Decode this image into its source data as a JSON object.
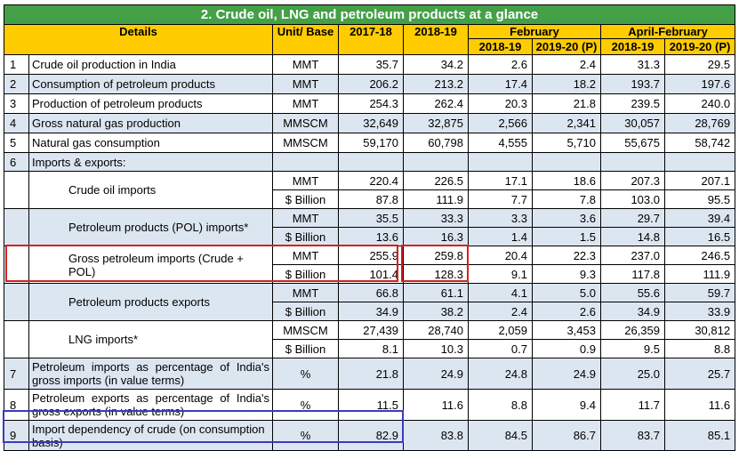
{
  "title": "2. Crude oil, LNG and petroleum products at a glance",
  "headers": {
    "details": "Details",
    "unit": "Unit/ Base",
    "y1": "2017-18",
    "y2": "2018-19",
    "feb": "February",
    "aprfeb": "April-February",
    "feb_a": "2018-19",
    "feb_b": "2019-20 (P)",
    "af_a": "2018-19",
    "af_b": "2019-20 (P)"
  },
  "rows": {
    "r1": {
      "sn": "1",
      "label": "Crude oil production in India",
      "unit": "MMT",
      "v": [
        "35.7",
        "34.2",
        "2.6",
        "2.4",
        "31.3",
        "29.5"
      ]
    },
    "r2": {
      "sn": "2",
      "label": "Consumption of petroleum products",
      "unit": "MMT",
      "v": [
        "206.2",
        "213.2",
        "17.4",
        "18.2",
        "193.7",
        "197.6"
      ]
    },
    "r3": {
      "sn": "3",
      "label": "Production of petroleum products",
      "unit": "MMT",
      "v": [
        "254.3",
        "262.4",
        "20.3",
        "21.8",
        "239.5",
        "240.0"
      ]
    },
    "r4": {
      "sn": "4",
      "label": "Gross natural gas production",
      "unit": "MMSCM",
      "v": [
        "32,649",
        "32,875",
        "2,566",
        "2,341",
        "30,057",
        "28,769"
      ]
    },
    "r5": {
      "sn": "5",
      "label": "Natural gas consumption",
      "unit": "MMSCM",
      "v": [
        "59,170",
        "60,798",
        "4,555",
        "5,710",
        "55,675",
        "58,742"
      ]
    },
    "r6": {
      "sn": "6",
      "label": "Imports & exports:"
    },
    "crude": {
      "label": "Crude oil imports",
      "a": {
        "unit": "MMT",
        "v": [
          "220.4",
          "226.5",
          "17.1",
          "18.6",
          "207.3",
          "207.1"
        ]
      },
      "b": {
        "unit": "$ Billion",
        "v": [
          "87.8",
          "111.9",
          "7.7",
          "7.8",
          "103.0",
          "95.5"
        ]
      }
    },
    "pol": {
      "label": "Petroleum products (POL) imports*",
      "a": {
        "unit": "MMT",
        "v": [
          "35.5",
          "33.3",
          "3.3",
          "3.6",
          "29.7",
          "39.4"
        ]
      },
      "b": {
        "unit": "$ Billion",
        "v": [
          "13.6",
          "16.3",
          "1.4",
          "1.5",
          "14.8",
          "16.5"
        ]
      }
    },
    "gross": {
      "label": "Gross petroleum imports (Crude + POL)",
      "a": {
        "unit": "MMT",
        "v": [
          "255.9",
          "259.8",
          "20.4",
          "22.3",
          "237.0",
          "246.5"
        ]
      },
      "b": {
        "unit": "$ Billion",
        "v": [
          "101.4",
          "128.3",
          "9.1",
          "9.3",
          "117.8",
          "111.9"
        ]
      }
    },
    "polexp": {
      "label": "Petroleum products exports",
      "a": {
        "unit": "MMT",
        "v": [
          "66.8",
          "61.1",
          "4.1",
          "5.0",
          "55.6",
          "59.7"
        ]
      },
      "b": {
        "unit": "$ Billion",
        "v": [
          "34.9",
          "38.2",
          "2.4",
          "2.6",
          "34.9",
          "33.9"
        ]
      }
    },
    "lng": {
      "label": "LNG imports*",
      "a": {
        "unit": "MMSCM",
        "v": [
          "27,439",
          "28,740",
          "2,059",
          "3,453",
          "26,359",
          "30,812"
        ]
      },
      "b": {
        "unit": "$ Billion",
        "v": [
          "8.1",
          "10.3",
          "0.7",
          "0.9",
          "9.5",
          "8.8"
        ]
      }
    },
    "r7": {
      "sn": "7",
      "label": "Petroleum imports as percentage of India's gross imports (in value terms)",
      "unit": "%",
      "v": [
        "21.8",
        "24.9",
        "24.8",
        "24.9",
        "25.0",
        "25.7"
      ]
    },
    "r8": {
      "sn": "8",
      "label": "Petroleum exports as percentage of India's gross exports (in value terms)",
      "unit": "%",
      "v": [
        "11.5",
        "11.6",
        "8.8",
        "9.4",
        "11.7",
        "11.6"
      ]
    },
    "r9": {
      "sn": "9",
      "label": "Import dependency of crude (on consumption basis)",
      "unit": "%",
      "v": [
        "82.9",
        "83.8",
        "84.5",
        "86.7",
        "83.7",
        "85.1"
      ]
    }
  },
  "colors": {
    "title_bg": "#43a047",
    "header_bg": "#ffcc00",
    "row_alt": "#dce6f1",
    "highlight_red": "#d62020",
    "highlight_blue": "#3b3bbf"
  }
}
